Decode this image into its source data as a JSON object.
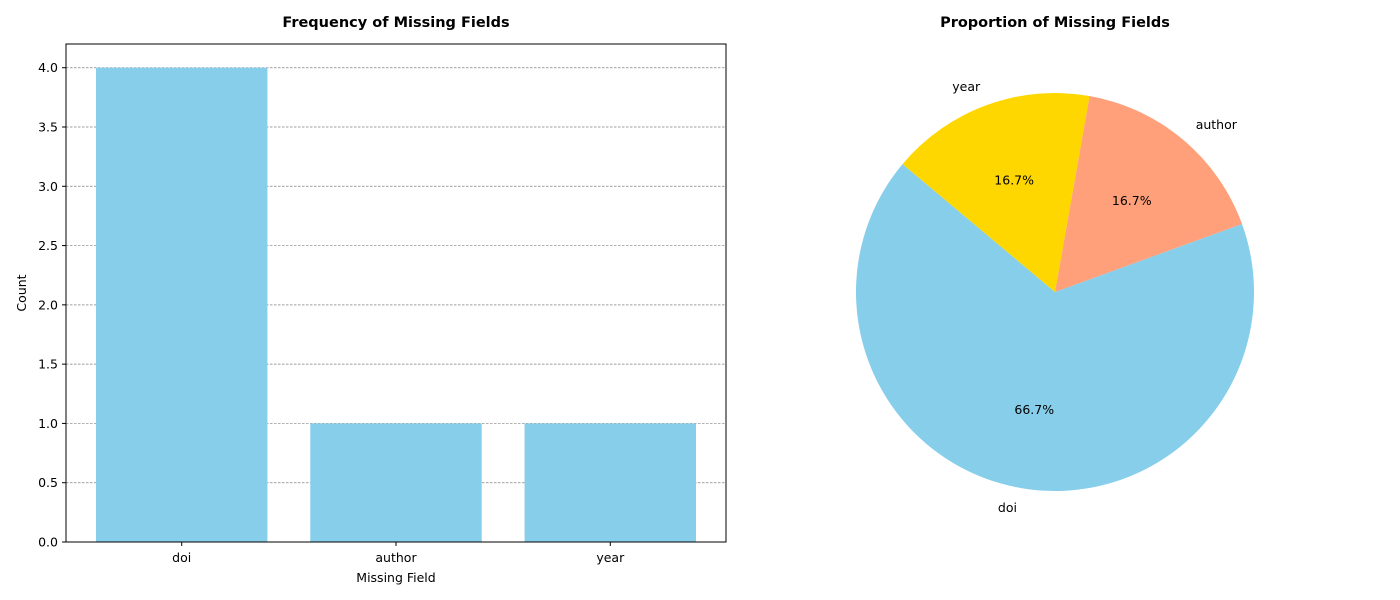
{
  "chart_data": [
    {
      "type": "bar",
      "title": "Frequency of Missing Fields",
      "xlabel": "Missing Field",
      "ylabel": "Count",
      "categories": [
        "doi",
        "author",
        "year"
      ],
      "values": [
        4,
        1,
        1
      ],
      "ylim": [
        0,
        4.2
      ],
      "yticks": [
        "0.0",
        "0.5",
        "1.0",
        "1.5",
        "2.0",
        "2.5",
        "3.0",
        "3.5",
        "4.0"
      ],
      "grid": "y-dashed",
      "color": "#87CEEB"
    },
    {
      "type": "pie",
      "title": "Proportion of Missing Fields",
      "labels": [
        "doi",
        "author",
        "year"
      ],
      "values": [
        4,
        1,
        1
      ],
      "percent_labels": [
        "66.7%",
        "16.7%",
        "16.7%"
      ],
      "colors": [
        "#87CEEB",
        "#FFA07A",
        "#FFD700"
      ],
      "start_angle_deg": 140
    }
  ]
}
